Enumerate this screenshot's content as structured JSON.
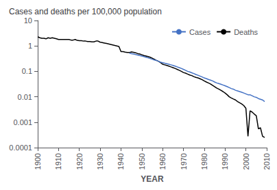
{
  "chart_data": {
    "type": "line",
    "title": "Cases and deaths per 100,000 population",
    "xlabel": "YEAR",
    "series": [
      {
        "name": "Deaths",
        "color": "#000000",
        "x": [
          1900,
          1901,
          1902,
          1903,
          1904,
          1905,
          1906,
          1907,
          1908,
          1909,
          1910,
          1911,
          1912,
          1913,
          1914,
          1915,
          1916,
          1917,
          1918,
          1919,
          1920,
          1921,
          1922,
          1923,
          1924,
          1925,
          1926,
          1927,
          1928,
          1929,
          1930,
          1931,
          1932,
          1933,
          1934,
          1935,
          1936,
          1937,
          1938,
          1939,
          1940,
          1941,
          1942,
          1943,
          1944,
          1945,
          1946,
          1947,
          1948,
          1949,
          1950,
          1951,
          1952,
          1953,
          1954,
          1955,
          1956,
          1957,
          1958,
          1959,
          1960,
          1961,
          1962,
          1963,
          1964,
          1965,
          1966,
          1967,
          1968,
          1969,
          1970,
          1971,
          1972,
          1973,
          1974,
          1975,
          1976,
          1977,
          1978,
          1979,
          1980,
          1981,
          1982,
          1983,
          1984,
          1985,
          1986,
          1987,
          1988,
          1989,
          1990,
          1991,
          1992,
          1993,
          1994,
          1995,
          1996,
          1997,
          1998,
          1999,
          2000,
          2001,
          2002,
          2003,
          2004,
          2005,
          2006,
          2007,
          2008,
          2009
        ],
        "values": [
          2.3,
          2.1,
          2.0,
          2.0,
          1.9,
          2.1,
          2.0,
          2.1,
          2.0,
          1.9,
          1.8,
          1.8,
          1.8,
          1.8,
          1.8,
          1.8,
          1.7,
          1.7,
          1.8,
          1.65,
          1.6,
          1.6,
          1.55,
          1.55,
          1.5,
          1.5,
          1.45,
          1.45,
          1.55,
          1.55,
          1.4,
          1.35,
          1.3,
          1.25,
          1.2,
          1.15,
          1.1,
          1.05,
          1.0,
          0.95,
          0.6,
          0.6,
          0.57,
          0.55,
          0.55,
          0.58,
          0.56,
          0.54,
          0.5,
          0.48,
          0.45,
          0.42,
          0.4,
          0.38,
          0.36,
          0.33,
          0.3,
          0.27,
          0.25,
          0.22,
          0.19,
          0.18,
          0.17,
          0.16,
          0.15,
          0.14,
          0.13,
          0.12,
          0.11,
          0.1,
          0.09,
          0.085,
          0.078,
          0.072,
          0.068,
          0.062,
          0.058,
          0.055,
          0.051,
          0.047,
          0.042,
          0.038,
          0.035,
          0.032,
          0.028,
          0.025,
          0.022,
          0.02,
          0.018,
          0.016,
          0.014,
          0.012,
          0.01,
          0.009,
          0.0082,
          0.0075,
          0.0065,
          0.0058,
          0.0052,
          0.0045,
          0.0035,
          0.00028,
          0.0028,
          0.0025,
          0.0021,
          0.0018,
          0.00055,
          0.0006,
          0.00028,
          0.00025
        ]
      },
      {
        "name": "Cases",
        "color": "#4472C4",
        "x": [
          1944,
          1945,
          1946,
          1947,
          1948,
          1949,
          1950,
          1951,
          1952,
          1953,
          1954,
          1955,
          1956,
          1957,
          1958,
          1959,
          1960,
          1961,
          1962,
          1963,
          1964,
          1965,
          1966,
          1967,
          1968,
          1969,
          1970,
          1971,
          1972,
          1973,
          1974,
          1975,
          1976,
          1977,
          1978,
          1979,
          1980,
          1981,
          1982,
          1983,
          1984,
          1985,
          1986,
          1987,
          1988,
          1989,
          1990,
          1991,
          1992,
          1993,
          1994,
          1995,
          1996,
          1997,
          1998,
          1999,
          2000,
          2001,
          2002,
          2003,
          2004,
          2005,
          2006,
          2007,
          2008,
          2009
        ],
        "values": [
          0.52,
          0.5,
          0.48,
          0.46,
          0.44,
          0.42,
          0.4,
          0.38,
          0.36,
          0.34,
          0.32,
          0.3,
          0.28,
          0.27,
          0.25,
          0.23,
          0.22,
          0.21,
          0.2,
          0.19,
          0.18,
          0.17,
          0.16,
          0.15,
          0.14,
          0.13,
          0.12,
          0.11,
          0.1,
          0.095,
          0.088,
          0.082,
          0.075,
          0.07,
          0.065,
          0.06,
          0.055,
          0.052,
          0.048,
          0.045,
          0.042,
          0.038,
          0.035,
          0.033,
          0.031,
          0.029,
          0.027,
          0.025,
          0.023,
          0.021,
          0.02,
          0.018,
          0.017,
          0.016,
          0.015,
          0.014,
          0.013,
          0.012,
          0.012,
          0.011,
          0.01,
          0.0095,
          0.0085,
          0.008,
          0.0075,
          0.0065
        ]
      }
    ],
    "xlim": [
      1900,
      2010
    ],
    "xticks": [
      1900,
      1910,
      1920,
      1930,
      1940,
      1950,
      1960,
      1970,
      1980,
      1990,
      2000,
      2010
    ],
    "ylim": [
      0.0001,
      10
    ],
    "yticks": [
      0.0001,
      0.001,
      0.01,
      0.1,
      1,
      10
    ],
    "log": "y",
    "grid": false,
    "legend": "upper right"
  }
}
